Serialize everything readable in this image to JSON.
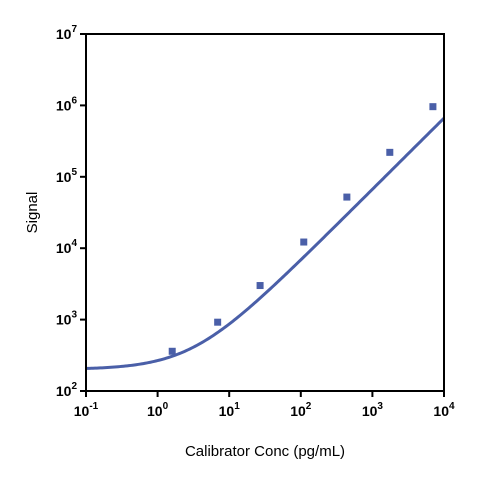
{
  "chart_data": {
    "type": "scatter",
    "xlabel": "Calibrator Conc (pg/mL)",
    "ylabel": "Signal",
    "x_scale": "log",
    "y_scale": "log",
    "xlim": [
      0.1,
      10000
    ],
    "ylim": [
      100,
      10000000
    ],
    "grid": false,
    "x_ticks": [
      {
        "base": "10",
        "exp": "-1",
        "value": 0.1
      },
      {
        "base": "10",
        "exp": "0",
        "value": 1
      },
      {
        "base": "10",
        "exp": "1",
        "value": 10
      },
      {
        "base": "10",
        "exp": "2",
        "value": 100
      },
      {
        "base": "10",
        "exp": "3",
        "value": 1000
      },
      {
        "base": "10",
        "exp": "4",
        "value": 10000
      }
    ],
    "y_ticks": [
      {
        "base": "10",
        "exp": "2",
        "value": 100
      },
      {
        "base": "10",
        "exp": "3",
        "value": 1000
      },
      {
        "base": "10",
        "exp": "4",
        "value": 10000
      },
      {
        "base": "10",
        "exp": "5",
        "value": 100000
      },
      {
        "base": "10",
        "exp": "6",
        "value": 1000000
      },
      {
        "base": "10",
        "exp": "7",
        "value": 10000000
      }
    ],
    "series": [
      {
        "marker": "square",
        "color": "#4a5fa8",
        "points": [
          {
            "x": 1.6,
            "y": 360
          },
          {
            "x": 6.9,
            "y": 920
          },
          {
            "x": 27,
            "y": 3000
          },
          {
            "x": 110,
            "y": 12200
          },
          {
            "x": 440,
            "y": 52000
          },
          {
            "x": 1750,
            "y": 220000
          },
          {
            "x": 7000,
            "y": 960000
          }
        ],
        "fit_curve": {
          "type": "4PL",
          "bottom": 200,
          "top": 100000000,
          "ec50": 1500000,
          "hill": 1.0
        }
      }
    ]
  }
}
